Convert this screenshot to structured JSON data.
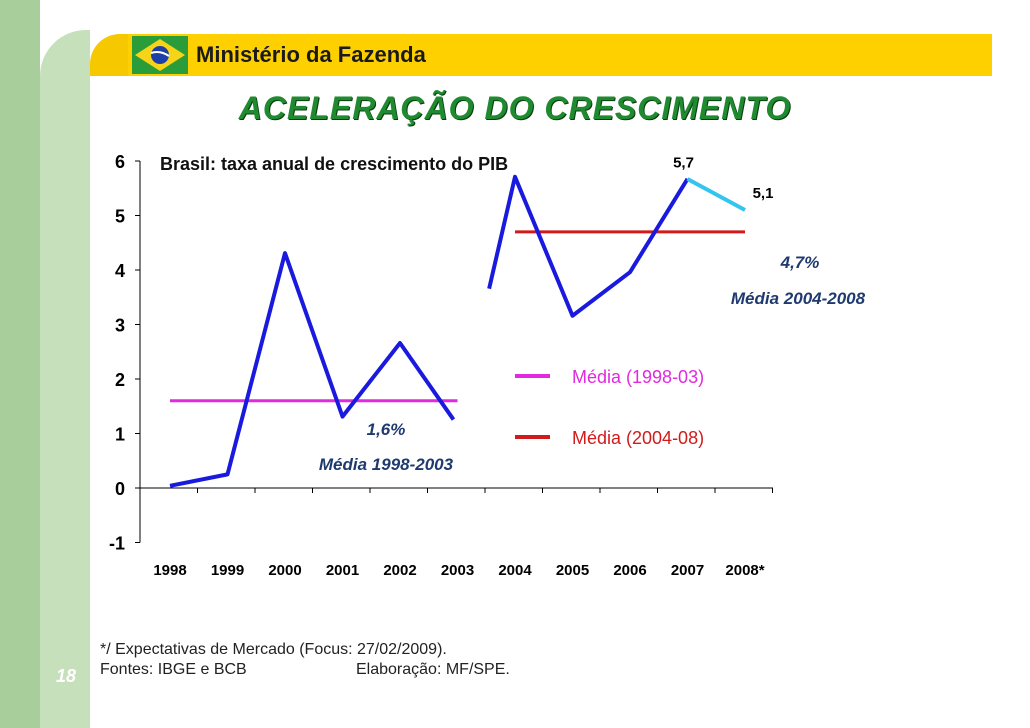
{
  "header": {
    "ministry": "Ministério da Fazenda"
  },
  "slide": {
    "title": "ACELERAÇÃO DO CRESCIMENTO",
    "page": "18"
  },
  "colors": {
    "main_line": "#1a1adf",
    "forecast_line": "#33c4ef",
    "avg1": "#e12ae0",
    "avg2": "#d11a1a",
    "title": "#1f8a2f",
    "header": "#ffd000"
  },
  "chart_data": {
    "type": "line",
    "title": "Brasil: taxa anual de crescimento do PIB",
    "categories": [
      "1998",
      "1999",
      "2000",
      "2001",
      "2002",
      "2003",
      "2004",
      "2005",
      "2006",
      "2007",
      "2008*"
    ],
    "series": [
      {
        "name": "PIB",
        "values": [
          0.04,
          0.25,
          4.31,
          1.31,
          2.66,
          1.15,
          5.71,
          3.16,
          3.96,
          5.67,
          5.1
        ],
        "gap_between": [
          "2003",
          "2004"
        ],
        "forecast": [
          "2007",
          "2008*"
        ]
      }
    ],
    "averages": [
      {
        "name": "Média (1998-03)",
        "value": 1.6,
        "range": [
          "1998",
          "2003"
        ],
        "label": "1,6%",
        "sublabel": "Média 1998-2003"
      },
      {
        "name": "Média (2004-08)",
        "value": 4.7,
        "range": [
          "2004",
          "2008*"
        ],
        "label": "4,7%",
        "sublabel": "Média 2004-2008"
      }
    ],
    "data_labels": {
      "2007": "5,7",
      "2008*": "5,1"
    },
    "ylim": [
      -1,
      6
    ],
    "yticks": [
      "-1",
      "0",
      "1",
      "2",
      "3",
      "4",
      "5",
      "6"
    ],
    "legend": [
      "Média (1998-03)",
      "Média (2004-08)"
    ],
    "legend_position": "center-right"
  },
  "footnotes": {
    "note": "*/ Expectativas de Mercado (Focus: 27/02/2009).",
    "sources": "Fontes: IBGE e BCB",
    "elaboration": "Elaboração: MF/SPE."
  }
}
